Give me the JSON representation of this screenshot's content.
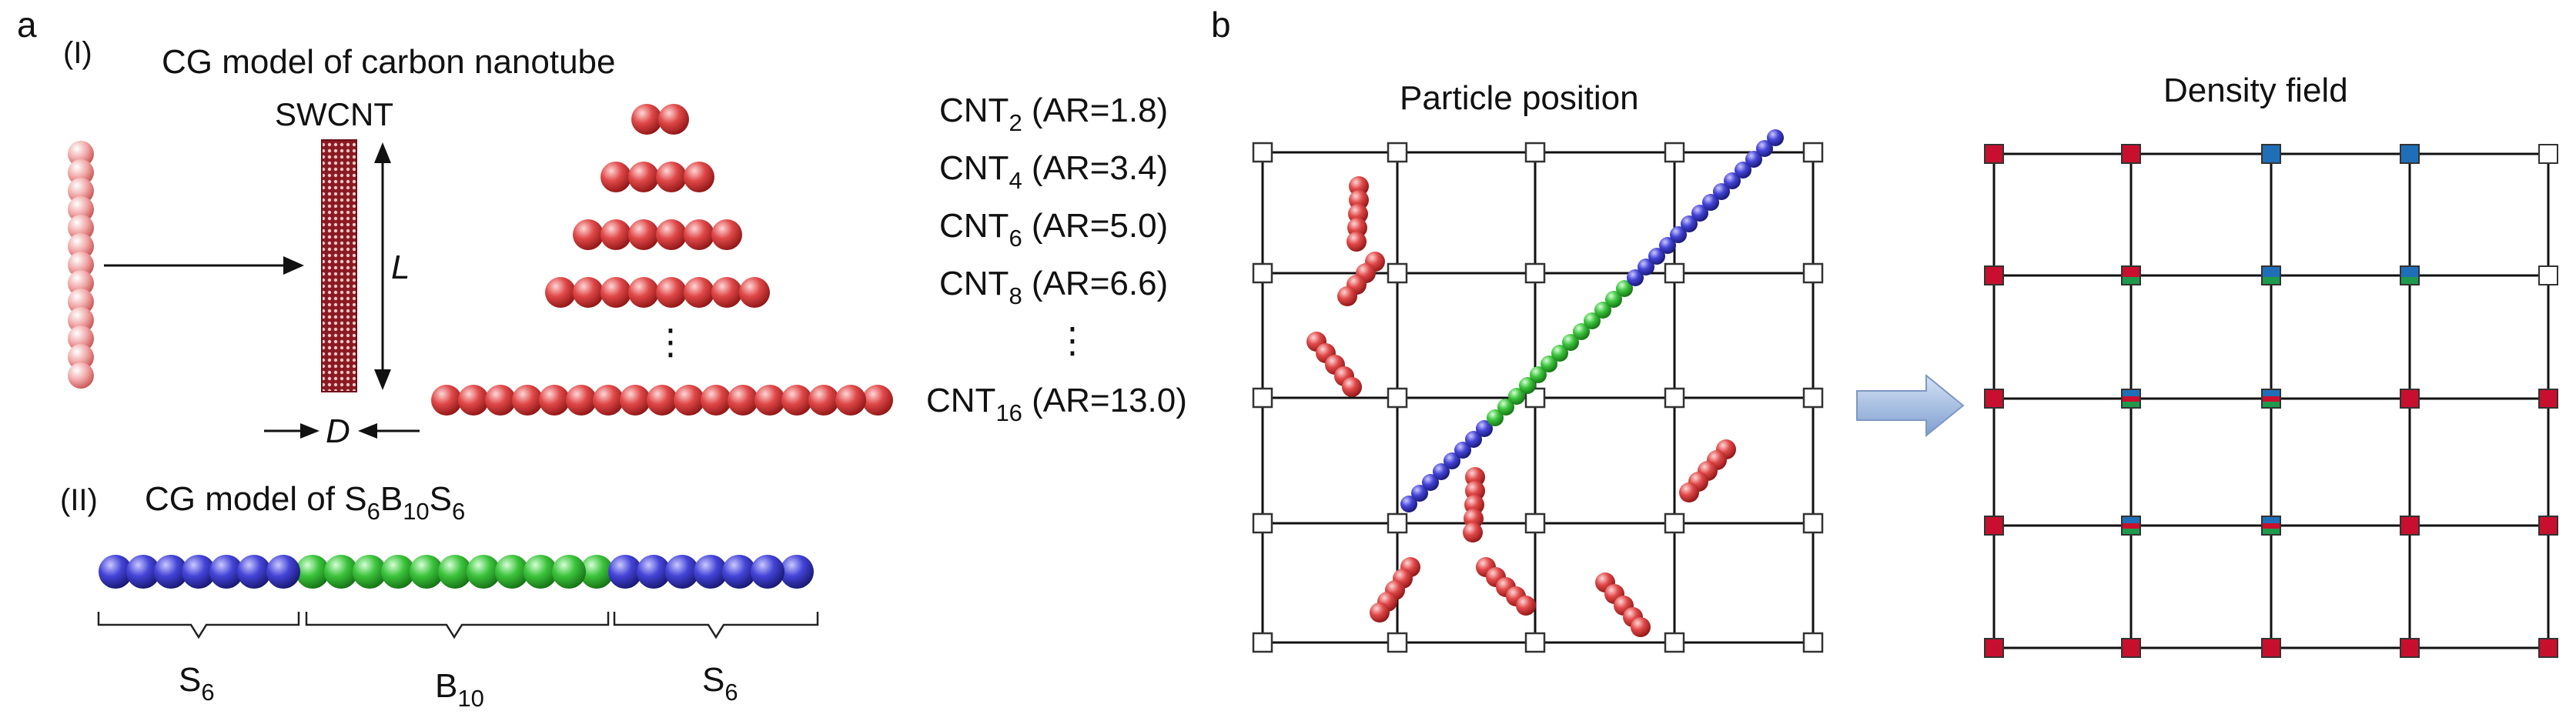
{
  "panel_a": {
    "label": "a",
    "part1": {
      "numeral": "(I)",
      "title": "CG model of  carbon nanotube",
      "swcnt_label": "SWCNT",
      "length_label": "L",
      "diameter_label": "D",
      "pyramid_ellipsis": "⋮",
      "list_ellipsis": "⋮",
      "cnt_labels": [
        {
          "base": "CNT",
          "sub": "2",
          "ar": " (AR=1.8)"
        },
        {
          "base": "CNT",
          "sub": "4",
          "ar": " (AR=3.4)"
        },
        {
          "base": "CNT",
          "sub": "6",
          "ar": " (AR=5.0)"
        },
        {
          "base": "CNT",
          "sub": "8",
          "ar": " (AR=6.6)"
        },
        {
          "base": "CNT",
          "sub": "16",
          "ar": " (AR=13.0)"
        }
      ]
    },
    "part2": {
      "numeral": "(II)",
      "title_prefix": "CG model of  ",
      "title_parts": [
        {
          "base": "S",
          "sub": "6"
        },
        {
          "base": "B",
          "sub": "10"
        },
        {
          "base": "S",
          "sub": "6"
        }
      ],
      "brace_labels": [
        {
          "base": "S",
          "sub": "6"
        },
        {
          "base": "B",
          "sub": "10"
        },
        {
          "base": "S",
          "sub": "6"
        }
      ]
    }
  },
  "panel_b": {
    "label": "b",
    "left_title": "Particle position",
    "right_title": "Density field"
  },
  "colors": {
    "cnt_bead": "#d93a3a",
    "s_block": "#3b3bc9",
    "b_block": "#36b536",
    "density_red": "#c8102e",
    "density_blue": "#1f6fb8",
    "density_green": "#1e9a4c",
    "arrow_fill": "#9fb8de",
    "swcnt": "#8a1a22"
  }
}
